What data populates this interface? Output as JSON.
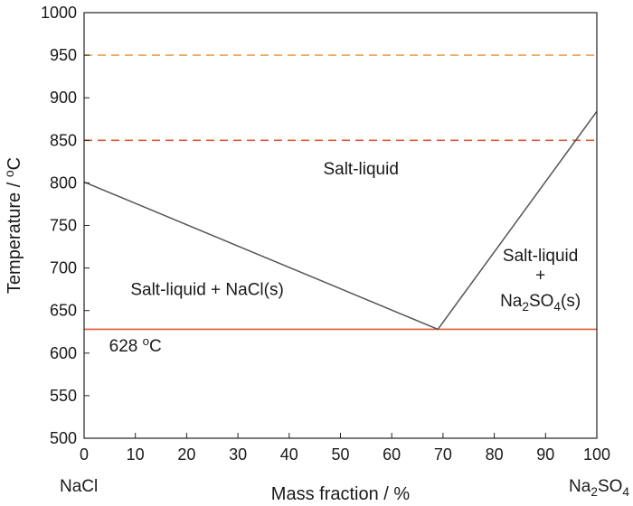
{
  "chart_data": {
    "type": "line",
    "xlabel": "Mass fraction / %",
    "ylabel": "Temperature / °C",
    "xlim": [
      0,
      100
    ],
    "ylim": [
      500,
      1000
    ],
    "xticks": [
      0,
      10,
      20,
      30,
      40,
      50,
      60,
      70,
      80,
      90,
      100
    ],
    "yticks": [
      500,
      550,
      600,
      650,
      700,
      750,
      800,
      850,
      900,
      950,
      1000
    ],
    "grid": false,
    "legend": "none",
    "series": [
      {
        "x": [
          0,
          69
        ],
        "y": [
          801,
          628
        ],
        "color": "#555555",
        "style": "solid"
      },
      {
        "x": [
          69,
          100
        ],
        "y": [
          628,
          884
        ],
        "color": "#555555",
        "style": "solid"
      }
    ],
    "reference_lines": [
      {
        "y": 628,
        "color": "#e05a3a",
        "style": "solid"
      },
      {
        "y": 850,
        "color": "#e05a3a",
        "style": "dashed"
      },
      {
        "y": 950,
        "color": "#e8a04a",
        "style": "dashed"
      }
    ],
    "region_labels": [
      {
        "text": "Salt-liquid",
        "x": 54,
        "y": 810
      },
      {
        "text": "Salt-liquid + NaCl(s)",
        "x": 24,
        "y": 668
      },
      {
        "text": "Salt-liquid",
        "x": 89,
        "y": 708
      },
      {
        "text": "+",
        "x": 89,
        "y": 685
      },
      {
        "text": "Na2SO4(s)",
        "x": 89,
        "y": 655
      }
    ],
    "annotations": [
      {
        "text": "628 °C",
        "x": 10,
        "y": 602
      }
    ],
    "end_labels": {
      "left": "NaCl",
      "right": "Na2SO4"
    }
  }
}
